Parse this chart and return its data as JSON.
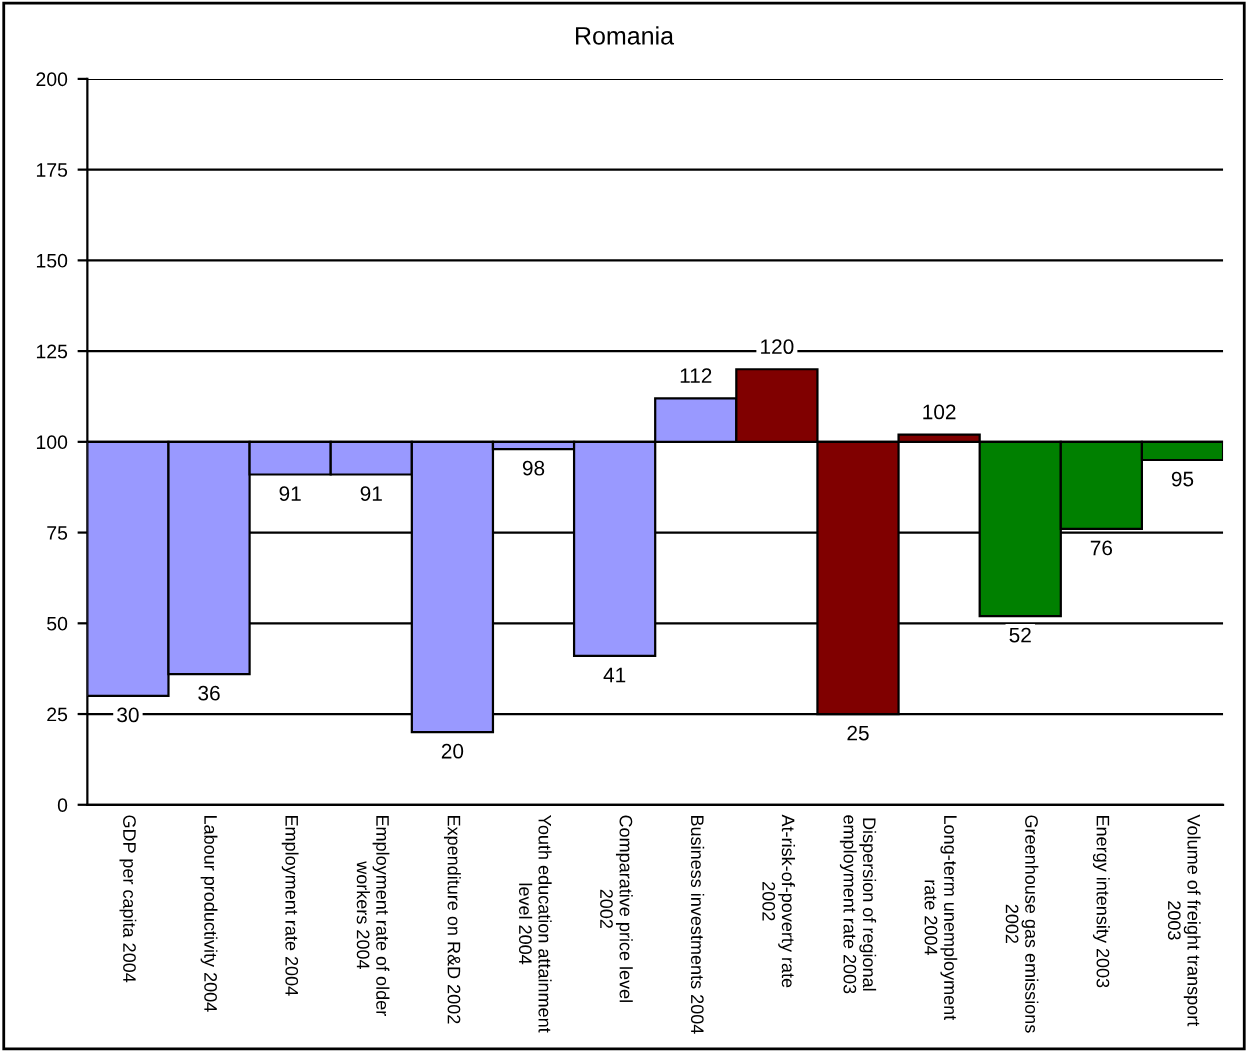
{
  "chart_data": {
    "type": "bar",
    "title": "Romania",
    "categories": [
      "GDP per capita 2004",
      "Labour productivity 2004",
      "Employment rate 2004",
      "Employment rate of older\nworkers 2004",
      "Expenditure on R&D 2002",
      "Youth education attainment\nlevel 2004",
      "Comparative price level\n2002",
      "Business investments 2004",
      "At-risk-of-poverty rate\n2002",
      "Dispersion of regional\nemployment rate 2003",
      "Long-term unemployment\nrate 2004",
      "Greenhouse gas emissions\n2002",
      "Energy intensity 2003",
      "Volume of freight transport\n2003"
    ],
    "base": [
      100,
      100,
      100,
      100,
      100,
      100,
      100,
      100,
      100,
      100,
      100,
      100,
      100,
      100
    ],
    "values": [
      -70,
      -64,
      -9,
      -9,
      -80,
      -2,
      -59,
      12,
      20,
      -75,
      2,
      -48,
      -24,
      -5
    ],
    "value_labels": [
      "30",
      "36",
      "91",
      "91",
      "20",
      "98",
      "41",
      "112",
      "120",
      "25",
      "102",
      "52",
      "76",
      "95"
    ],
    "colors": [
      "#9999ff",
      "#9999ff",
      "#9999ff",
      "#9999ff",
      "#9999ff",
      "#9999ff",
      "#9999ff",
      "#9999ff",
      "#800000",
      "#800000",
      "#800000",
      "#008000",
      "#008000",
      "#008000"
    ],
    "ylim": [
      0,
      200
    ],
    "yticks": [
      0,
      25,
      50,
      75,
      100,
      125,
      150,
      175,
      200
    ],
    "grid": "y"
  }
}
